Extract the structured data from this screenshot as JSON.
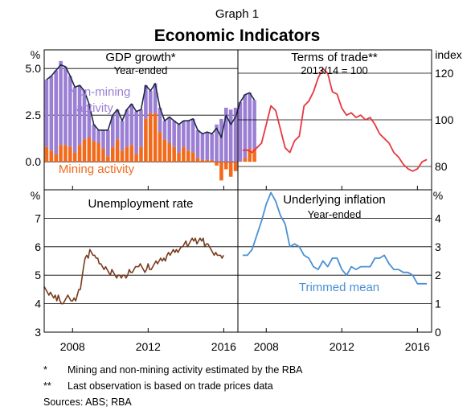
{
  "figure": {
    "label": "Graph 1",
    "title": "Economic Indicators",
    "footnotes": [
      {
        "mark": "*",
        "text": "Mining and non-mining activity estimated by the RBA"
      },
      {
        "mark": "**",
        "text": "Last observation is based on trade prices data"
      }
    ],
    "sources": "Sources:   ABS; RBA"
  },
  "chart_data": [
    {
      "id": "gdp",
      "type": "bar",
      "title": "GDP growth*",
      "subtitle": "Year-ended",
      "unit_label": "%",
      "ylim": [
        -1.5,
        6.0
      ],
      "yticks": [
        0.0,
        2.5,
        5.0
      ],
      "ytick_labels": [
        "0.0",
        "2.5",
        "5.0"
      ],
      "x_start": 2006.5,
      "x_step": 0.25,
      "series": [
        {
          "name": "Non-mining activity",
          "color": "#9B7FD4",
          "values": [
            3.6,
            4.0,
            4.5,
            4.5,
            4.2,
            3.8,
            3.5,
            3.2,
            2.6,
            1.8,
            0.9,
            0.7,
            1.0,
            1.4,
            1.7,
            1.6,
            1.6,
            2.0,
            2.2,
            2.3,
            2.0,
            1.8,
            1.2,
            1.6,
            1.3,
            1.0,
            1.4,
            1.4,
            1.5,
            1.4,
            1.6,
            1.8,
            1.5,
            1.4,
            1.5,
            1.4,
            2.0,
            2.3,
            2.9,
            2.8,
            2.9,
            3.2,
            3.4,
            3.0,
            2.6
          ]
        },
        {
          "name": "Mining activity",
          "color": "#F26B1D",
          "values": [
            0.8,
            0.6,
            0.4,
            0.9,
            0.9,
            0.8,
            0.5,
            0.9,
            1.2,
            1.3,
            1.1,
            1.0,
            0.7,
            0.3,
            0.8,
            1.2,
            0.6,
            0.8,
            0.9,
            0.4,
            0.8,
            2.3,
            2.6,
            2.6,
            1.6,
            1.2,
            1.0,
            0.8,
            0.5,
            0.8,
            0.6,
            0.5,
            0.2,
            0.1,
            0.1,
            0.1,
            -0.2,
            -1.0,
            -0.4,
            -0.8,
            -0.5,
            0.0,
            0.2,
            0.7,
            0.7
          ]
        },
        {
          "name": "GDP growth",
          "color": "#1F2A44",
          "values": [
            4.4,
            4.6,
            4.9,
            5.2,
            5.1,
            4.6,
            4.0,
            4.1,
            3.8,
            3.1,
            2.0,
            1.7,
            1.7,
            1.7,
            2.5,
            2.8,
            2.2,
            2.8,
            3.1,
            2.7,
            2.8,
            4.1,
            3.8,
            4.2,
            2.9,
            2.2,
            2.4,
            2.2,
            2.0,
            2.2,
            2.2,
            2.3,
            1.7,
            1.5,
            1.6,
            1.5,
            1.8,
            1.3,
            2.5,
            2.0,
            2.4,
            3.2,
            3.6,
            3.7,
            3.3
          ]
        }
      ]
    },
    {
      "id": "tot",
      "type": "line",
      "title": "Terms of trade**",
      "subtitle": "2013/14 = 100",
      "unit_label": "index",
      "ylim": [
        70,
        130
      ],
      "yticks": [
        80,
        100,
        120
      ],
      "ytick_labels": [
        "80",
        "100",
        "120"
      ],
      "color": "#E8373F",
      "x": [
        2006.75,
        2007.0,
        2007.25,
        2007.5,
        2007.75,
        2008.0,
        2008.25,
        2008.5,
        2008.75,
        2009.0,
        2009.25,
        2009.5,
        2009.75,
        2010.0,
        2010.25,
        2010.5,
        2010.75,
        2011.0,
        2011.25,
        2011.5,
        2011.75,
        2012.0,
        2012.25,
        2012.5,
        2012.75,
        2013.0,
        2013.25,
        2013.5,
        2013.75,
        2014.0,
        2014.25,
        2014.5,
        2014.75,
        2015.0,
        2015.25,
        2015.5,
        2015.75,
        2016.0,
        2016.25,
        2016.5
      ],
      "y": [
        87,
        87,
        86,
        88,
        90,
        98,
        106,
        104,
        96,
        88,
        86,
        91,
        93,
        106,
        108,
        112,
        118,
        122,
        120,
        112,
        111,
        105,
        102,
        103,
        101,
        102,
        100,
        101,
        98,
        94,
        92,
        90,
        86,
        84,
        81,
        79,
        78,
        79,
        82,
        83
      ]
    },
    {
      "id": "unemp",
      "type": "line",
      "title": "Unemployment rate",
      "unit_label": "%",
      "ylim": [
        3,
        8
      ],
      "yticks": [
        3,
        4,
        5,
        6,
        7
      ],
      "ytick_labels": [
        "3",
        "4",
        "5",
        "6",
        "7"
      ],
      "color": "#7A3B1E",
      "x_start": 2006.5,
      "x_step": 0.0833,
      "y": [
        4.6,
        4.5,
        4.4,
        4.3,
        4.4,
        4.3,
        4.2,
        4.3,
        4.1,
        4.3,
        4.1,
        4.0,
        4.0,
        4.1,
        4.2,
        4.3,
        4.2,
        4.1,
        4.1,
        4.2,
        4.1,
        4.3,
        4.5,
        4.5,
        4.9,
        5.3,
        5.6,
        5.7,
        5.6,
        5.9,
        5.8,
        5.7,
        5.7,
        5.6,
        5.6,
        5.4,
        5.4,
        5.3,
        5.2,
        5.3,
        5.2,
        5.1,
        5.0,
        5.2,
        5.1,
        5.0,
        4.9,
        5.0,
        5.0,
        4.9,
        5.0,
        5.0,
        4.9,
        5.0,
        5.2,
        5.1,
        5.1,
        5.2,
        5.3,
        5.3,
        5.3,
        5.4,
        5.3,
        5.2,
        5.1,
        5.2,
        5.4,
        5.2,
        5.2,
        5.3,
        5.4,
        5.5,
        5.4,
        5.5,
        5.6,
        5.5,
        5.6,
        5.5,
        5.7,
        5.8,
        5.7,
        5.8,
        5.9,
        5.8,
        5.9,
        5.8,
        5.9,
        6.0,
        6.0,
        6.1,
        6.2,
        6.0,
        6.1,
        6.2,
        6.3,
        6.2,
        6.3,
        6.1,
        6.2,
        6.3,
        6.2,
        6.3,
        6.0,
        6.1,
        6.1,
        6.0,
        5.9,
        5.8,
        5.7,
        5.8,
        5.7,
        5.7,
        5.7,
        5.6,
        5.7
      ]
    },
    {
      "id": "infl",
      "type": "line",
      "title": "Underlying inflation",
      "subtitle": "Year-ended",
      "unit_label": "%",
      "ylim": [
        0,
        5
      ],
      "yticks": [
        0,
        1,
        2,
        3,
        4
      ],
      "ytick_labels": [
        "0",
        "1",
        "2",
        "3",
        "4"
      ],
      "color": "#4A90D4",
      "series_label": "Trimmed mean",
      "x": [
        2006.75,
        2007.0,
        2007.25,
        2007.5,
        2007.75,
        2008.0,
        2008.25,
        2008.5,
        2008.75,
        2009.0,
        2009.25,
        2009.5,
        2009.75,
        2010.0,
        2010.25,
        2010.5,
        2010.75,
        2011.0,
        2011.25,
        2011.5,
        2011.75,
        2012.0,
        2012.25,
        2012.5,
        2012.75,
        2013.0,
        2013.25,
        2013.5,
        2013.75,
        2014.0,
        2014.25,
        2014.5,
        2014.75,
        2015.0,
        2015.25,
        2015.5,
        2015.75,
        2016.0,
        2016.25,
        2016.5
      ],
      "y": [
        2.7,
        2.7,
        2.9,
        3.4,
        3.9,
        4.5,
        4.9,
        4.6,
        4.1,
        3.8,
        3.0,
        3.1,
        3.0,
        2.7,
        2.6,
        2.3,
        2.2,
        2.5,
        2.3,
        2.6,
        2.6,
        2.2,
        2.0,
        2.3,
        2.2,
        2.3,
        2.3,
        2.3,
        2.6,
        2.6,
        2.7,
        2.4,
        2.2,
        2.2,
        2.1,
        2.1,
        2.0,
        1.7,
        1.7,
        1.7
      ]
    }
  ],
  "x_axis": {
    "ticks": [
      2008,
      2012,
      2016
    ],
    "tick_labels": [
      "2008",
      "2012",
      "2016"
    ],
    "xlim": [
      2006.5,
      2016.75
    ]
  },
  "annotations": {
    "non_mining_line1": "Non-mining",
    "non_mining_line2": "activity",
    "mining": "Mining activity"
  }
}
